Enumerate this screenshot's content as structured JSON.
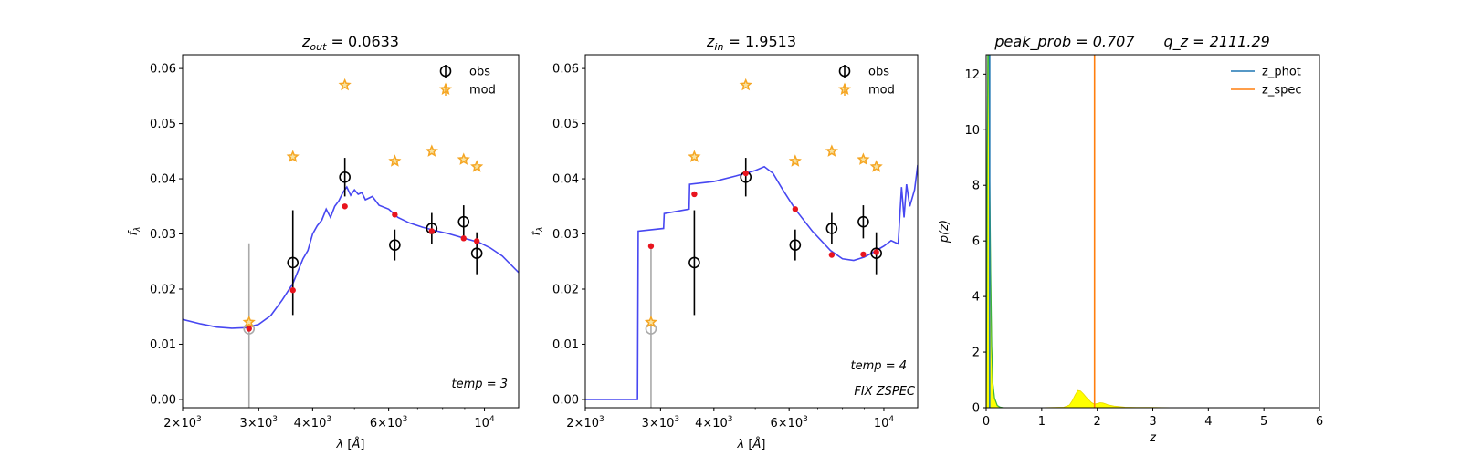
{
  "chart_data": [
    {
      "type": "scatter",
      "title": "z_out = 0.0633",
      "title_main": "z",
      "title_sub": "out",
      "title_rest": " = 0.0633",
      "xlabel": "λ [Å]",
      "ylabel": "f_λ",
      "xscale": "log",
      "xlim": [
        2000,
        12000
      ],
      "ylim": [
        -0.0015,
        0.0625
      ],
      "xticks": [
        {
          "value": 2000,
          "mant": "2",
          "exp": "3"
        },
        {
          "value": 3000,
          "mant": "3",
          "exp": "3"
        },
        {
          "value": 4000,
          "mant": "4",
          "exp": "3"
        },
        {
          "value": 6000,
          "mant": "6",
          "exp": "3"
        },
        {
          "value": 10000,
          "mant": "",
          "exp": "4"
        }
      ],
      "yticks": [
        "0.00",
        "0.01",
        "0.02",
        "0.03",
        "0.04",
        "0.05",
        "0.06"
      ],
      "legend": {
        "position": "top-right",
        "entries": [
          "obs",
          "mod"
        ]
      },
      "annotations": [
        "temp = 3"
      ],
      "series": [
        {
          "name": "obs",
          "marker": "open-circle",
          "color": "#000000",
          "x": [
            3600,
            4750,
            6200,
            7550,
            8950,
            9600
          ],
          "y": [
            0.0248,
            0.0403,
            0.028,
            0.031,
            0.0322,
            0.0265
          ],
          "err": [
            0.0095,
            0.0035,
            0.0028,
            0.0028,
            0.003,
            0.0038
          ]
        },
        {
          "name": "obs (excluded)",
          "marker": "open-circle",
          "color": "#aaaaaa",
          "x": [
            2850
          ],
          "y": [
            0.0128
          ],
          "err": [
            0.0155
          ]
        },
        {
          "name": "mod",
          "marker": "star",
          "color": "#f5a623",
          "x": [
            2850,
            3600,
            4750,
            6200,
            7550,
            8950,
            9600
          ],
          "y": [
            0.014,
            0.044,
            0.057,
            0.0432,
            0.045,
            0.0435,
            0.0422
          ]
        },
        {
          "name": "template flux",
          "marker": "dot",
          "color": "#e8141e",
          "x": [
            2850,
            3600,
            4750,
            6200,
            7550,
            8950,
            9600
          ],
          "y": [
            0.0128,
            0.0198,
            0.035,
            0.0335,
            0.0305,
            0.0292,
            0.0287
          ]
        },
        {
          "name": "template",
          "marker": "line",
          "color": "#3d3df0",
          "x": [
            2000,
            2200,
            2400,
            2600,
            2800,
            3000,
            3200,
            3400,
            3600,
            3800,
            3900,
            4000,
            4100,
            4200,
            4300,
            4400,
            4500,
            4600,
            4700,
            4800,
            4900,
            5000,
            5100,
            5200,
            5300,
            5500,
            5700,
            6000,
            6300,
            6700,
            7200,
            7700,
            8300,
            9000,
            9700,
            10300,
            11000,
            12000
          ],
          "y": [
            0.0145,
            0.0137,
            0.0131,
            0.0129,
            0.013,
            0.0136,
            0.0152,
            0.018,
            0.021,
            0.0255,
            0.027,
            0.03,
            0.0315,
            0.0325,
            0.0345,
            0.033,
            0.035,
            0.036,
            0.0375,
            0.0385,
            0.037,
            0.038,
            0.0372,
            0.0375,
            0.0362,
            0.0368,
            0.0352,
            0.0345,
            0.033,
            0.032,
            0.0312,
            0.0306,
            0.03,
            0.0292,
            0.0285,
            0.0275,
            0.026,
            0.023
          ]
        }
      ]
    },
    {
      "type": "scatter",
      "title": "z_in = 1.9513",
      "title_main": "z",
      "title_sub": "in",
      "title_rest": " = 1.9513",
      "xlabel": "λ [Å]",
      "ylabel": "f_λ",
      "xscale": "log",
      "xlim": [
        2000,
        12000
      ],
      "ylim": [
        -0.0015,
        0.0625
      ],
      "xticks": [
        {
          "value": 2000,
          "mant": "2",
          "exp": "3"
        },
        {
          "value": 3000,
          "mant": "3",
          "exp": "3"
        },
        {
          "value": 4000,
          "mant": "4",
          "exp": "3"
        },
        {
          "value": 6000,
          "mant": "6",
          "exp": "3"
        },
        {
          "value": 10000,
          "mant": "",
          "exp": "4"
        }
      ],
      "yticks": [
        "0.00",
        "0.01",
        "0.02",
        "0.03",
        "0.04",
        "0.05",
        "0.06"
      ],
      "legend": {
        "position": "top-right",
        "entries": [
          "obs",
          "mod"
        ]
      },
      "annotations": [
        "temp = 4",
        "FIX ZSPEC"
      ],
      "series": [
        {
          "name": "obs",
          "marker": "open-circle",
          "color": "#000000",
          "x": [
            3600,
            4750,
            6200,
            7550,
            8950,
            9600
          ],
          "y": [
            0.0248,
            0.0403,
            0.028,
            0.031,
            0.0322,
            0.0265
          ],
          "err": [
            0.0095,
            0.0035,
            0.0028,
            0.0028,
            0.003,
            0.0038
          ]
        },
        {
          "name": "obs (excluded)",
          "marker": "open-circle",
          "color": "#aaaaaa",
          "x": [
            2850
          ],
          "y": [
            0.0128
          ],
          "err": [
            0.0155
          ]
        },
        {
          "name": "mod",
          "marker": "star",
          "color": "#f5a623",
          "x": [
            2850,
            3600,
            4750,
            6200,
            7550,
            8950,
            9600
          ],
          "y": [
            0.014,
            0.044,
            0.057,
            0.0432,
            0.045,
            0.0435,
            0.0422
          ]
        },
        {
          "name": "template flux",
          "marker": "dot",
          "color": "#e8141e",
          "x": [
            2850,
            3600,
            4750,
            6200,
            7550,
            8950,
            9600
          ],
          "y": [
            0.0278,
            0.0372,
            0.041,
            0.0345,
            0.0262,
            0.0263,
            0.0267
          ]
        },
        {
          "name": "template",
          "marker": "line",
          "color": "#3d3df0",
          "x": [
            2000,
            2650,
            2660,
            3050,
            3060,
            3500,
            3510,
            4000,
            4500,
            5000,
            5250,
            5500,
            5800,
            6200,
            6800,
            7500,
            8000,
            8500,
            9000,
            9500,
            10000,
            10400,
            10800,
            11000,
            11150,
            11300,
            11500,
            11800,
            12000
          ],
          "y": [
            0.0,
            0.0,
            0.0305,
            0.031,
            0.0337,
            0.0345,
            0.039,
            0.0395,
            0.0405,
            0.0415,
            0.0422,
            0.041,
            0.038,
            0.0345,
            0.0305,
            0.027,
            0.0255,
            0.0252,
            0.0258,
            0.0268,
            0.0278,
            0.0288,
            0.0282,
            0.0385,
            0.033,
            0.039,
            0.035,
            0.038,
            0.0425
          ]
        }
      ]
    },
    {
      "type": "area",
      "title": "peak_prob = 0.707    q_z = 2111.29",
      "title_left": "peak_prob = 0.707",
      "title_right": "q_z = 2111.29",
      "xlabel": "z",
      "ylabel": "p(z)",
      "xlim": [
        0,
        6
      ],
      "ylim": [
        0,
        12.7
      ],
      "xticks": [
        "0",
        "1",
        "2",
        "3",
        "4",
        "5",
        "6"
      ],
      "yticks": [
        "0",
        "2",
        "4",
        "6",
        "8",
        "10",
        "12"
      ],
      "legend": {
        "position": "top-right",
        "entries": [
          "z_phot",
          "z_spec"
        ]
      },
      "vlines": [
        {
          "name": "z_phot",
          "x": 0.0633,
          "color": "#1f77b4"
        },
        {
          "name": "z_spec",
          "x": 1.9513,
          "color": "#ff7f0e"
        }
      ],
      "series": [
        {
          "name": "p(z)",
          "color": "#ffff00",
          "x": [
            0,
            0.01,
            0.02,
            0.03,
            0.04,
            0.05,
            0.06,
            0.08,
            0.1,
            0.12,
            0.15,
            0.2,
            0.25,
            0.3,
            0.5,
            1.0,
            1.4,
            1.5,
            1.55,
            1.6,
            1.65,
            1.7,
            1.75,
            1.8,
            1.85,
            1.9,
            1.95,
            2.0,
            2.05,
            2.1,
            2.15,
            2.2,
            2.3,
            2.5,
            2.7,
            3.0,
            3.5,
            4.0,
            5.0
          ],
          "y": [
            0,
            4,
            9,
            12.7,
            12.7,
            12.7,
            9,
            5,
            2.2,
            0.9,
            0.35,
            0.08,
            0.02,
            0,
            0,
            0,
            0.02,
            0.1,
            0.25,
            0.45,
            0.62,
            0.6,
            0.5,
            0.38,
            0.28,
            0.18,
            0.13,
            0.15,
            0.18,
            0.17,
            0.14,
            0.1,
            0.06,
            0.02,
            0.01,
            0.01,
            0,
            0,
            0
          ]
        },
        {
          "name": "p(z) outline",
          "color": "#3cb43c",
          "x": [
            0,
            0.01,
            0.02,
            0.03,
            0.04,
            0.05,
            0.06,
            0.08,
            0.1,
            0.12,
            0.15,
            0.2,
            0.25,
            0.3
          ],
          "y": [
            0,
            4,
            9,
            12.7,
            12.7,
            12.7,
            9,
            5,
            2.2,
            0.9,
            0.35,
            0.08,
            0.02,
            0
          ]
        }
      ]
    }
  ]
}
